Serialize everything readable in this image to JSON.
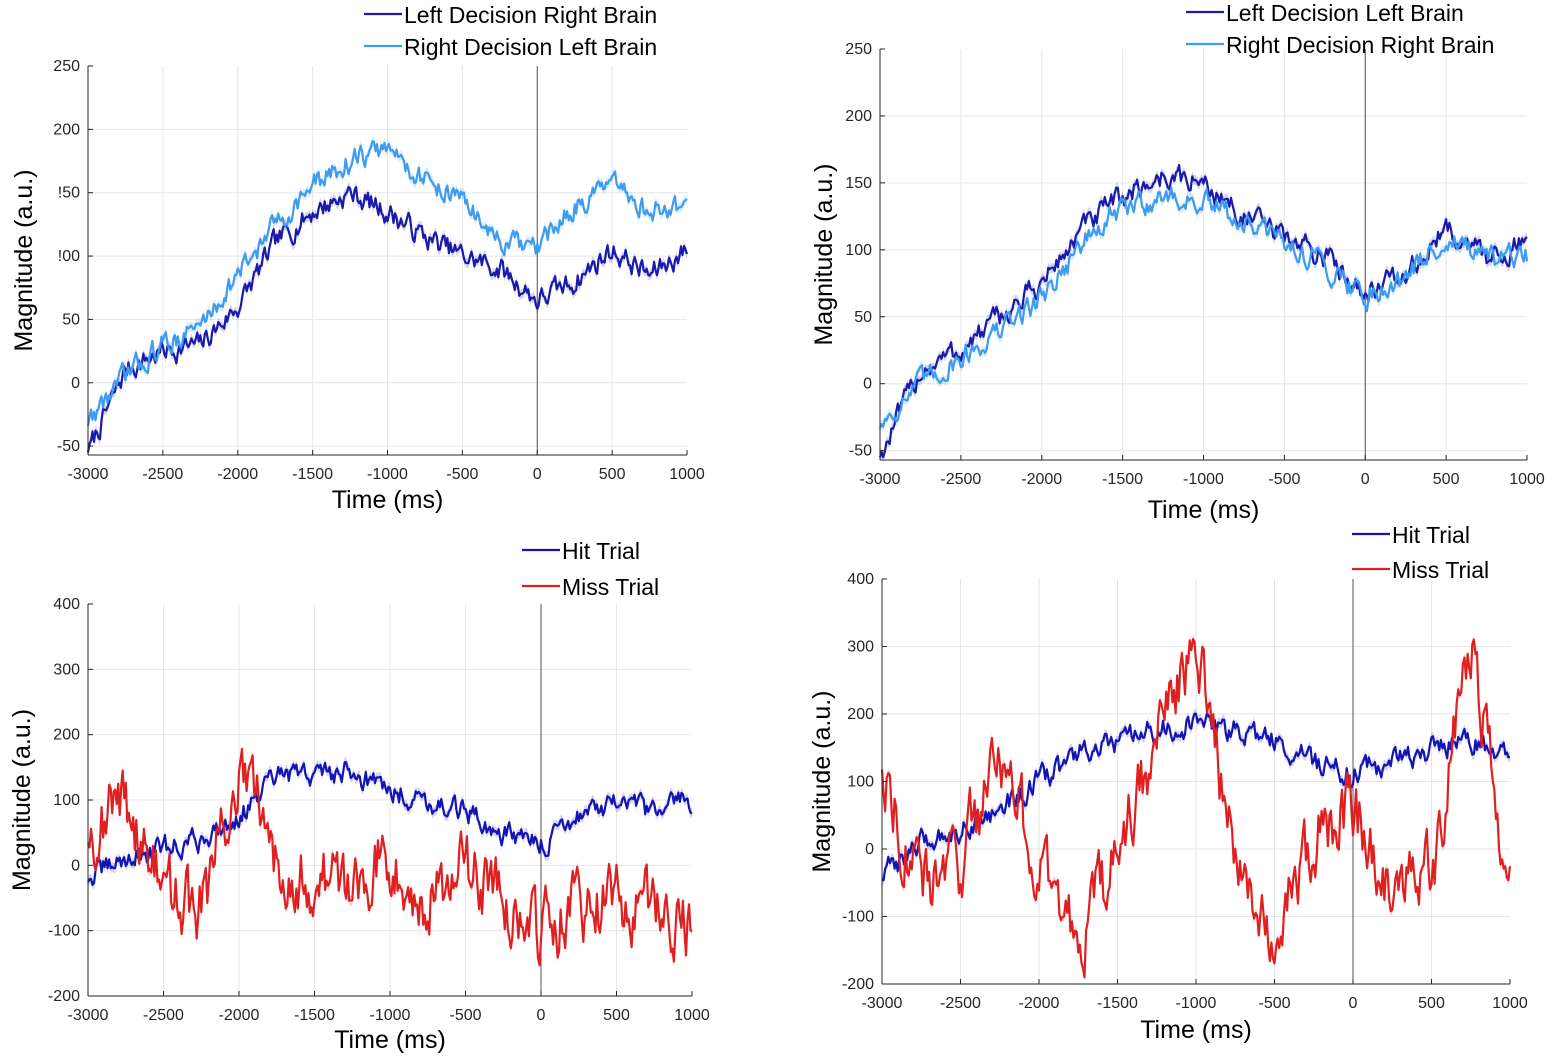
{
  "chart_data": [
    {
      "type": "line",
      "title": "",
      "xlabel": "Time (ms)",
      "ylabel": "Magnitude (a.u.)",
      "xlim": [
        -3000,
        1000
      ],
      "ylim": [
        -57,
        250
      ],
      "xticks": [
        "-3000",
        "-2500",
        "-2000",
        "-1500",
        "-1000",
        "-500",
        "0",
        "500",
        "1000"
      ],
      "yticks": [
        "-50",
        "0",
        "50",
        "100",
        "150",
        "200",
        "250"
      ],
      "ytick_labels": [
        "-50",
        "0",
        "50",
        "!00",
        "!50",
        "200",
        "250"
      ],
      "xtick_values": [
        -3000,
        -2500,
        -2000,
        -1500,
        -1000,
        -500,
        0,
        500,
        1000
      ],
      "ytick_values": [
        -50,
        0,
        50,
        100,
        150,
        200,
        250
      ],
      "grid": true,
      "vline_x": 0,
      "legend_position": "top-right",
      "x": [
        -3000,
        -2750,
        -2500,
        -2250,
        -2000,
        -1750,
        -1500,
        -1250,
        -1000,
        -750,
        -500,
        -250,
        0,
        250,
        500,
        750,
        1000
      ],
      "series": [
        {
          "name": "Left Decision Right Brain",
          "color": "#1a1aaa",
          "values": [
            -55,
            10,
            25,
            30,
            60,
            110,
            135,
            150,
            135,
            115,
            100,
            90,
            65,
            80,
            105,
            85,
            105
          ]
        },
        {
          "name": "Right Decision Left Brain",
          "color": "#3d9bf0",
          "values": [
            -30,
            5,
            30,
            45,
            85,
            125,
            155,
            175,
            185,
            160,
            145,
            110,
            105,
            140,
            155,
            135,
            140
          ]
        }
      ]
    },
    {
      "type": "line",
      "title": "",
      "xlabel": "Time (ms)",
      "ylabel": "Magnitude (a.u.)",
      "xlim": [
        -3000,
        1000
      ],
      "ylim": [
        -57,
        250
      ],
      "xticks": [
        "-3000",
        "-2500",
        "-2000",
        "-1500",
        "-1000",
        "-500",
        "0",
        "500",
        "1000"
      ],
      "yticks": [
        "-50",
        "0",
        "50",
        "100",
        "150",
        "200",
        "250"
      ],
      "ytick_labels": [
        "-50",
        "0",
        "50",
        "100",
        "150",
        "200",
        "250"
      ],
      "xtick_values": [
        -3000,
        -2500,
        -2000,
        -1500,
        -1000,
        -500,
        0,
        500,
        1000
      ],
      "ytick_values": [
        -50,
        0,
        50,
        100,
        150,
        200,
        250
      ],
      "grid": true,
      "vline_x": 0,
      "legend_position": "top-right",
      "x": [
        -3000,
        -2750,
        -2500,
        -2250,
        -2000,
        -1750,
        -1500,
        -1250,
        -1000,
        -750,
        -500,
        -250,
        0,
        250,
        500,
        750,
        1000
      ],
      "series": [
        {
          "name": "Left Decision Left Brain",
          "color": "#1a1aaa",
          "values": [
            -55,
            10,
            25,
            50,
            75,
            115,
            140,
            155,
            150,
            125,
            110,
            95,
            70,
            80,
            115,
            95,
            105
          ]
        },
        {
          "name": "Right Decision Right Brain",
          "color": "#3d9bf0",
          "values": [
            -30,
            0,
            20,
            40,
            65,
            105,
            130,
            140,
            135,
            120,
            105,
            90,
            65,
            80,
            110,
            90,
            95
          ]
        }
      ]
    },
    {
      "type": "line",
      "title": "",
      "xlabel": "Time (ms)",
      "ylabel": "Magnitude (a.u.)",
      "xlim": [
        -3000,
        1000
      ],
      "ylim": [
        -200,
        400
      ],
      "xticks": [
        "-3000",
        "-2500",
        "-2000",
        "-1500",
        "-1000",
        "-500",
        "0",
        "500",
        "1000"
      ],
      "yticks": [
        "-200",
        "-100",
        "0",
        "100",
        "200",
        "300",
        "400"
      ],
      "ytick_labels": [
        "-200",
        "-100",
        "0",
        "100",
        "200",
        "300",
        "400"
      ],
      "xtick_values": [
        -3000,
        -2500,
        -2000,
        -1500,
        -1000,
        -500,
        0,
        500,
        1000
      ],
      "ytick_values": [
        -200,
        -100,
        0,
        100,
        200,
        300,
        400
      ],
      "grid": true,
      "vline_x": 0,
      "legend_position": "top-right",
      "x": [
        -3000,
        -2750,
        -2500,
        -2250,
        -2000,
        -1750,
        -1500,
        -1250,
        -1000,
        -750,
        -500,
        -250,
        0,
        250,
        500,
        750,
        1000
      ],
      "series": [
        {
          "name": "Hit Trial",
          "color": "#1414b4",
          "values": [
            -20,
            10,
            25,
            40,
            75,
            135,
            140,
            145,
            115,
            100,
            80,
            50,
            30,
            80,
            90,
            80,
            105
          ]
        },
        {
          "name": "Miss Trial",
          "color": "#e02020",
          "values": [
            50,
            100,
            -40,
            -70,
            140,
            20,
            -30,
            -20,
            20,
            -60,
            0,
            -50,
            -100,
            -70,
            -50,
            -70,
            -100
          ]
        }
      ]
    },
    {
      "type": "line",
      "title": "",
      "xlabel": "Time (ms)",
      "ylabel": "Magnitude (a.u.)",
      "xlim": [
        -3000,
        1000
      ],
      "ylim": [
        -200,
        400
      ],
      "xticks": [
        "-3000",
        "-2500",
        "-2000",
        "-1500",
        "-1000",
        "-500",
        "0",
        "500",
        "1000"
      ],
      "yticks": [
        "-200",
        "-100",
        "0",
        "100",
        "200",
        "300",
        "400"
      ],
      "ytick_labels": [
        "-200",
        "-100",
        "0",
        "100",
        "200",
        "300",
        "400"
      ],
      "xtick_values": [
        -3000,
        -2500,
        -2000,
        -1500,
        -1000,
        -500,
        0,
        500,
        1000
      ],
      "ytick_values": [
        -200,
        -100,
        0,
        100,
        200,
        300,
        400
      ],
      "grid": true,
      "vline_x": 0,
      "legend_position": "top-right",
      "x": [
        -3000,
        -2750,
        -2500,
        -2250,
        -2000,
        -1750,
        -1500,
        -1250,
        -1000,
        -750,
        -500,
        -250,
        0,
        250,
        500,
        750,
        1000
      ],
      "series": [
        {
          "name": "Hit Trial",
          "color": "#1414b4",
          "values": [
            -40,
            10,
            30,
            60,
            100,
            140,
            155,
            175,
            185,
            175,
            160,
            130,
            110,
            130,
            150,
            160,
            140
          ]
        },
        {
          "name": "Miss Trial",
          "color": "#e02020",
          "values": [
            130,
            -60,
            -20,
            160,
            -40,
            -130,
            -20,
            170,
            300,
            0,
            -120,
            20,
            60,
            -80,
            -40,
            300,
            -60
          ]
        }
      ]
    }
  ]
}
